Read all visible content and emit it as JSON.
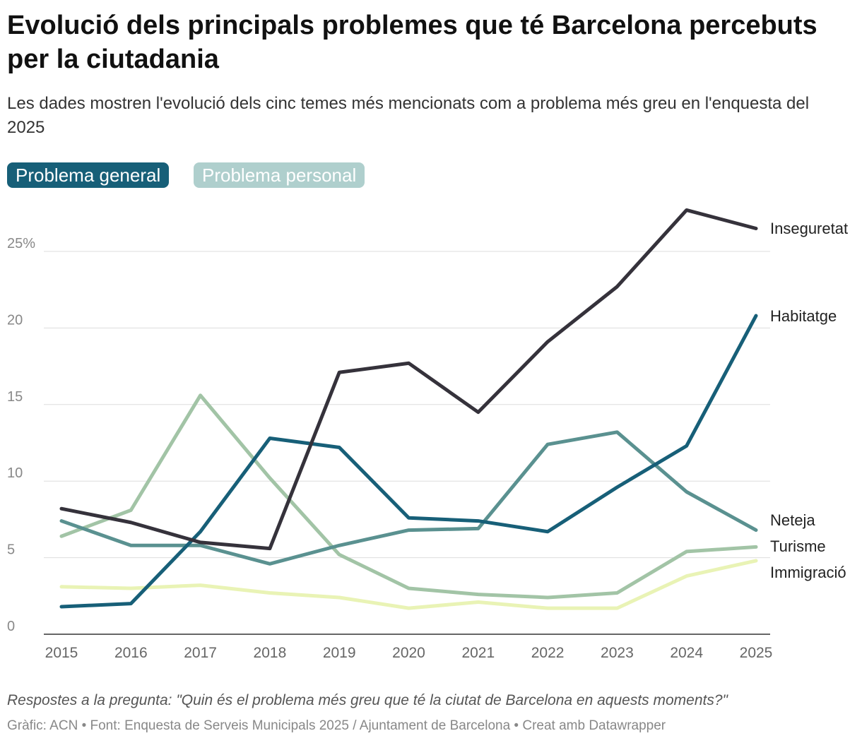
{
  "title": "Evolució dels principals problemes que té Barcelona percebuts per la ciutadania",
  "subtitle": "Les dades mostren l'evolució dels cinc temes més mencionats com a problema més greu en l'enquesta del 2025",
  "toggle": {
    "options": [
      "Problema general",
      "Problema personal"
    ],
    "selected": "Problema general",
    "colors": {
      "active": "#175f78",
      "inactive": "#afcfcd"
    }
  },
  "note": "Respostes a la pregunta: \"Quin és el problema més greu que té la ciutat de Barcelona en aquests moments?\"",
  "credit": "Gràfic: ACN • Font: Enquesta de Serveis Municipals 2025 / Ajuntament de Barcelona • Creat amb Datawrapper",
  "chart_data": {
    "type": "line",
    "x": [
      2015,
      2016,
      2017,
      2018,
      2019,
      2020,
      2021,
      2022,
      2023,
      2024,
      2025
    ],
    "ylim": [
      0,
      28
    ],
    "yticks": [
      0,
      5,
      10,
      15,
      20,
      25
    ],
    "ytick_labels": [
      "0",
      "5",
      "10",
      "15",
      "20",
      "25%"
    ],
    "grid": true,
    "series": [
      {
        "name": "Inseguretat",
        "color": "#35323b",
        "values": [
          8.2,
          7.3,
          6.0,
          5.6,
          17.1,
          17.7,
          14.5,
          19.1,
          22.7,
          27.7,
          26.5
        ]
      },
      {
        "name": "Habitatge",
        "color": "#175f78",
        "values": [
          1.8,
          2.0,
          6.7,
          12.8,
          12.2,
          7.6,
          7.4,
          6.7,
          9.6,
          12.3,
          20.8
        ]
      },
      {
        "name": "Neteja",
        "color": "#5a9190",
        "values": [
          7.4,
          5.8,
          5.8,
          4.6,
          5.8,
          6.8,
          6.9,
          12.4,
          13.2,
          9.3,
          6.8
        ]
      },
      {
        "name": "Turisme",
        "color": "#a2c4a6",
        "values": [
          6.4,
          8.1,
          15.6,
          10.2,
          5.2,
          3.0,
          2.6,
          2.4,
          2.7,
          5.4,
          5.7
        ]
      },
      {
        "name": "Immigració",
        "color": "#e9f3b5",
        "values": [
          3.1,
          3.0,
          3.2,
          2.7,
          2.4,
          1.7,
          2.1,
          1.7,
          1.7,
          3.8,
          4.8
        ]
      }
    ]
  }
}
